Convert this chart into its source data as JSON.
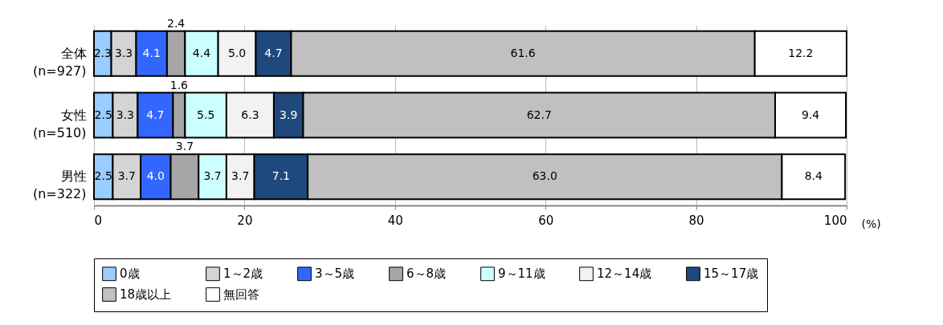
{
  "chart_data": {
    "type": "bar",
    "orientation": "horizontal",
    "stacked": true,
    "categories": [
      "全体\n(n=927)",
      "女性\n(n=510)",
      "男性\n(n=322)"
    ],
    "series": [
      {
        "name": "0歳",
        "color": "#99ccff",
        "values": [
          2.3,
          2.5,
          2.5
        ],
        "value_labels": [
          "2.3",
          "2.5",
          "2.5"
        ]
      },
      {
        "name": "1～2歳",
        "color": "#d4d4d4",
        "values": [
          3.3,
          3.3,
          3.7
        ],
        "value_labels": [
          "3.3",
          "3.3",
          "3.7"
        ]
      },
      {
        "name": "3～5歳",
        "color": "#3366ff",
        "values": [
          4.1,
          4.7,
          4.0
        ],
        "value_labels": [
          "4.1",
          "4.7",
          "4.0"
        ]
      },
      {
        "name": "6～8歳",
        "color": "#a6a6a6",
        "values": [
          2.4,
          1.6,
          3.7
        ],
        "value_labels": [
          "2.4",
          "1.6",
          "3.7"
        ]
      },
      {
        "name": "9～11歳",
        "color": "#ccffff",
        "values": [
          4.4,
          5.5,
          3.7
        ],
        "value_labels": [
          "4.4",
          "5.5",
          "3.7"
        ]
      },
      {
        "name": "12～14歳",
        "color": "#f2f2f2",
        "values": [
          5.0,
          6.3,
          3.7
        ],
        "value_labels": [
          "5.0",
          "6.3",
          "3.7"
        ]
      },
      {
        "name": "15～17歳",
        "color": "#1f497d",
        "values": [
          4.7,
          3.9,
          7.1
        ],
        "value_labels": [
          "4.7",
          "3.9",
          "7.1"
        ]
      },
      {
        "name": "18歳以上",
        "color": "#c0c0c0",
        "values": [
          61.6,
          62.7,
          63.0
        ],
        "value_labels": [
          "61.6",
          "62.7",
          "63.0"
        ]
      },
      {
        "name": "無回答",
        "color": "#ffffff",
        "values": [
          12.2,
          9.4,
          8.4
        ],
        "value_labels": [
          "12.2",
          "9.4",
          "8.4"
        ]
      }
    ],
    "xlabel": "(%)",
    "xlim": [
      0,
      100
    ],
    "xticks": [
      0,
      20,
      40,
      60,
      80,
      100
    ],
    "grid": "x",
    "legend": "bottom"
  }
}
